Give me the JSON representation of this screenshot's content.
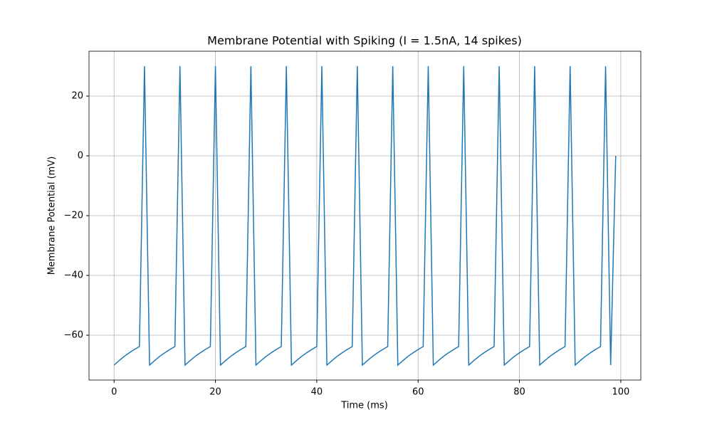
{
  "chart_data": {
    "type": "line",
    "title": "Membrane Potential with Spiking (I = 1.5nA, 14 spikes)",
    "x_label": "Time (ms)",
    "y_label": "Membrane Potential (mV)",
    "x": [
      0,
      1,
      2,
      3,
      4,
      5,
      6,
      7,
      8,
      9,
      10,
      11,
      12,
      13,
      14,
      15,
      16,
      17,
      18,
      19,
      20,
      21,
      22,
      23,
      24,
      25,
      26,
      27,
      28,
      29,
      30,
      31,
      32,
      33,
      34,
      35,
      36,
      37,
      38,
      39,
      40,
      41,
      42,
      43,
      44,
      45,
      46,
      47,
      48,
      49,
      50,
      51,
      52,
      53,
      54,
      55,
      56,
      57,
      58,
      59,
      60,
      61,
      62,
      63,
      64,
      65,
      66,
      67,
      68,
      69,
      70,
      71,
      72,
      73,
      74,
      75,
      76,
      77,
      78,
      79,
      80,
      81,
      82,
      83,
      84,
      85,
      86,
      87,
      88,
      89,
      90,
      91,
      92,
      93,
      94,
      95,
      96,
      97,
      98,
      99
    ],
    "series": [
      {
        "name": "Membrane potential",
        "color": "#1f77b4",
        "values": [
          -70,
          -68.5,
          -67.1,
          -65.9,
          -64.8,
          -63.8,
          30,
          -70,
          -68.5,
          -67.1,
          -65.9,
          -64.8,
          -63.8,
          30,
          -70,
          -68.5,
          -67.1,
          -65.9,
          -64.8,
          -63.8,
          30,
          -70,
          -68.5,
          -67.1,
          -65.9,
          -64.8,
          -63.8,
          30,
          -70,
          -68.5,
          -67.1,
          -65.9,
          -64.8,
          -63.8,
          30,
          -70,
          -68.5,
          -67.1,
          -65.9,
          -64.8,
          -63.8,
          30,
          -70,
          -68.5,
          -67.1,
          -65.9,
          -64.8,
          -63.8,
          30,
          -70,
          -68.5,
          -67.1,
          -65.9,
          -64.8,
          -63.8,
          30,
          -70,
          -68.5,
          -67.1,
          -65.9,
          -64.8,
          -63.8,
          30,
          -70,
          -68.5,
          -67.1,
          -65.9,
          -64.8,
          -63.8,
          30,
          -70,
          -68.5,
          -67.1,
          -65.9,
          -64.8,
          -63.8,
          30,
          -70,
          -68.5,
          -67.1,
          -65.9,
          -64.8,
          -63.8,
          30,
          -70,
          -68.5,
          -67.1,
          -65.9,
          -64.8,
          -63.8,
          30,
          -70,
          -68.5,
          -67.1,
          -65.9,
          -64.8,
          -63.8,
          30,
          -70,
          0
        ]
      }
    ],
    "xlim": [
      -4.95,
      103.95
    ],
    "ylim": [
      -75,
      35
    ],
    "xticks": [
      0,
      20,
      40,
      60,
      80,
      100
    ],
    "yticks": [
      {
        "value": -60,
        "label": "−60"
      },
      {
        "value": -40,
        "label": "−40"
      },
      {
        "value": -20,
        "label": "−20"
      },
      0,
      20
    ],
    "grid": true
  }
}
